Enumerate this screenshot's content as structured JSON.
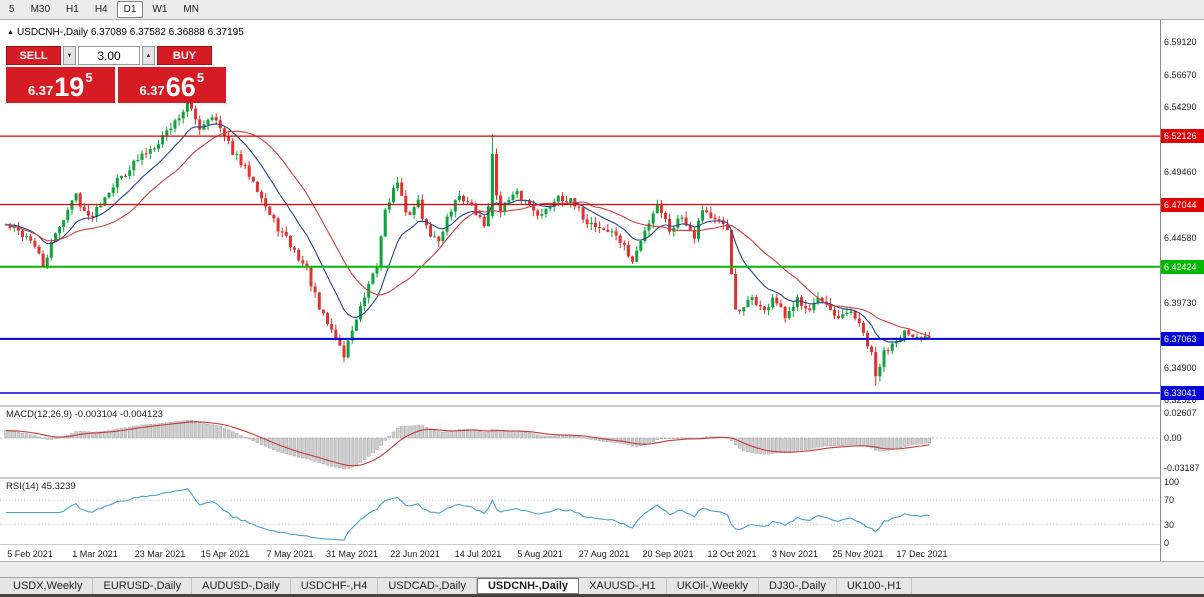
{
  "toolbar": {
    "timeframes": [
      {
        "label": "5",
        "active": false
      },
      {
        "label": "M30",
        "active": false
      },
      {
        "label": "H1",
        "active": false
      },
      {
        "label": "H4",
        "active": false
      },
      {
        "label": "D1",
        "active": true
      },
      {
        "label": "W1",
        "active": false
      },
      {
        "label": "MN",
        "active": false
      }
    ]
  },
  "chart": {
    "title": "USDCNH-,Daily 6.37089 6.37582 6.36888 6.37195",
    "symbol": "USDCNH-,Daily",
    "ohlc": {
      "open": "6.37089",
      "high": "6.37582",
      "low": "6.36888",
      "close": "6.37195"
    }
  },
  "trade_panel": {
    "sell_label": "SELL",
    "buy_label": "BUY",
    "volume": "3.00",
    "bid": {
      "prefix": "6.37",
      "big": "19",
      "sup": "5"
    },
    "ask": {
      "prefix": "6.37",
      "big": "66",
      "sup": "5"
    }
  },
  "icons": {
    "volume_up": "▲",
    "volume_down": "▼",
    "collapse_marker": "▲"
  },
  "price_axis": {
    "ticks": [
      {
        "label": "6.59120",
        "price": 6.5912
      },
      {
        "label": "6.56670",
        "price": 6.5667
      },
      {
        "label": "6.54290",
        "price": 6.5429
      },
      {
        "label": "6.49460",
        "price": 6.4946
      },
      {
        "label": "6.44580",
        "price": 6.4458
      },
      {
        "label": "6.39730",
        "price": 6.3973
      },
      {
        "label": "6.37310",
        "price": 6.3731
      },
      {
        "label": "6.34900",
        "price": 6.349
      },
      {
        "label": "6.32520",
        "price": 6.3252
      }
    ],
    "level_tags": [
      {
        "label": "6.52126",
        "price": 6.52126,
        "color": "#e00000"
      },
      {
        "label": "6.47044",
        "price": 6.47044,
        "color": "#e00000"
      },
      {
        "label": "6.42424",
        "price": 6.42424,
        "color": "#00b800"
      },
      {
        "label": "6.37063",
        "price": 6.37063,
        "color": "#0000d8"
      },
      {
        "label": "6.33041",
        "price": 6.33041,
        "color": "#0000d8"
      }
    ]
  },
  "macd_panel": {
    "label": "MACD(12,26,9) -0.003104 -0.004123",
    "axis": [
      {
        "label": "0.02607",
        "value": 0.02607
      },
      {
        "label": "0.00",
        "value": 0
      },
      {
        "label": "-0.03187",
        "value": -0.03187
      }
    ]
  },
  "rsi_panel": {
    "label": "RSI(14) 45.3239",
    "axis": [
      {
        "label": "100",
        "value": 100
      },
      {
        "label": "70",
        "value": 70
      },
      {
        "label": "30",
        "value": 30
      },
      {
        "label": "0",
        "value": 0
      }
    ],
    "levels": [
      70,
      30
    ]
  },
  "date_axis": {
    "labels": [
      "5 Feb 2021",
      "1 Mar 2021",
      "23 Mar 2021",
      "15 Apr 2021",
      "7 May 2021",
      "31 May 2021",
      "22 Jun 2021",
      "14 Jul 2021",
      "5 Aug 2021",
      "27 Aug 2021",
      "20 Sep 2021",
      "12 Oct 2021",
      "3 Nov 2021",
      "25 Nov 2021",
      "17 Dec 2021"
    ]
  },
  "tabs": [
    {
      "label": "USDX,Weekly",
      "active": false
    },
    {
      "label": "EURUSD-,Daily",
      "active": false
    },
    {
      "label": "AUDUSD-,Daily",
      "active": false
    },
    {
      "label": "USDCHF-,H4",
      "active": false
    },
    {
      "label": "USDCAD-,Daily",
      "active": false
    },
    {
      "label": "USDCNH-,Daily",
      "active": true
    },
    {
      "label": "XAUUSD-,H1",
      "active": false
    },
    {
      "label": "UKOil-,Weekly",
      "active": false
    },
    {
      "label": "DJ30-,Daily",
      "active": false
    },
    {
      "label": "UK100-,H1",
      "active": false
    }
  ],
  "colors": {
    "candle_up": "#0fa13c",
    "candle_down": "#e23030",
    "ma_fast": "#23458f",
    "ma_slow": "#cf4040",
    "macd_hist_fill": "#cecece",
    "macd_hist_stroke": "#9a9a9a",
    "macd_signal": "#c43a3a",
    "rsi_line": "#4aa0d8",
    "sell_buy_red": "#d51c24"
  },
  "chart_data": {
    "type": "candlestick",
    "symbol": "USDCNH",
    "timeframe": "D1",
    "visible_range": {
      "start": "5 Feb 2021",
      "end": "17 Dec 2021"
    },
    "candle_count": 225,
    "price_anchors": [
      [
        0,
        6.455
      ],
      [
        6,
        6.445
      ],
      [
        9,
        6.425
      ],
      [
        13,
        6.455
      ],
      [
        17,
        6.478
      ],
      [
        20,
        6.46
      ],
      [
        22,
        6.468
      ],
      [
        25,
        6.482
      ],
      [
        30,
        6.498
      ],
      [
        35,
        6.512
      ],
      [
        37,
        6.518
      ],
      [
        41,
        6.532
      ],
      [
        44,
        6.545
      ],
      [
        47,
        6.528
      ],
      [
        50,
        6.538
      ],
      [
        53,
        6.52
      ],
      [
        57,
        6.5
      ],
      [
        60,
        6.49
      ],
      [
        64,
        6.462
      ],
      [
        69,
        6.44
      ],
      [
        73,
        6.422
      ],
      [
        76,
        6.392
      ],
      [
        80,
        6.372
      ],
      [
        82,
        6.358
      ],
      [
        84,
        6.378
      ],
      [
        87,
        6.4
      ],
      [
        90,
        6.425
      ],
      [
        92,
        6.468
      ],
      [
        95,
        6.488
      ],
      [
        97,
        6.462
      ],
      [
        100,
        6.472
      ],
      [
        102,
        6.452
      ],
      [
        105,
        6.442
      ],
      [
        107,
        6.462
      ],
      [
        110,
        6.478
      ],
      [
        113,
        6.468
      ],
      [
        116,
        6.455
      ],
      [
        118,
        6.488
      ],
      [
        120,
        6.468
      ],
      [
        124,
        6.478
      ],
      [
        128,
        6.468
      ],
      [
        130,
        6.462
      ],
      [
        134,
        6.478
      ],
      [
        137,
        6.472
      ],
      [
        141,
        6.458
      ],
      [
        145,
        6.452
      ],
      [
        148,
        6.448
      ],
      [
        150,
        6.438
      ],
      [
        152,
        6.428
      ],
      [
        156,
        6.458
      ],
      [
        158,
        6.472
      ],
      [
        161,
        6.452
      ],
      [
        164,
        6.462
      ],
      [
        167,
        6.448
      ],
      [
        169,
        6.468
      ],
      [
        172,
        6.458
      ],
      [
        175,
        6.452
      ],
      [
        177,
        6.39
      ],
      [
        179,
        6.392
      ],
      [
        181,
        6.402
      ],
      [
        184,
        6.39
      ],
      [
        186,
        6.402
      ],
      [
        189,
        6.386
      ],
      [
        191,
        6.392
      ],
      [
        192,
        6.4
      ],
      [
        195,
        6.394
      ],
      [
        197,
        6.4
      ],
      [
        200,
        6.39
      ],
      [
        202,
        6.384
      ],
      [
        205,
        6.392
      ],
      [
        207,
        6.38
      ],
      [
        208,
        6.374
      ],
      [
        210,
        6.358
      ],
      [
        211,
        6.342
      ],
      [
        213,
        6.36
      ],
      [
        216,
        6.372
      ],
      [
        218,
        6.376
      ],
      [
        220,
        6.369
      ],
      [
        224,
        6.372
      ]
    ],
    "spike_high": {
      "index": 118,
      "open": 6.462,
      "close": 6.508,
      "high": 6.523
    },
    "late_low": {
      "index": 211,
      "low": 6.336
    },
    "last_close": 6.37195,
    "levels": [
      6.52126,
      6.47044,
      6.42424,
      6.37063,
      6.33041
    ],
    "indicators": {
      "macd": {
        "fast": 12,
        "slow": 26,
        "signal": 9,
        "current_main": -0.003104,
        "current_signal": -0.004123,
        "axis_max": 0.02607,
        "axis_min": -0.03187
      },
      "rsi": {
        "period": 14,
        "current": 45.3239,
        "levels": [
          70,
          30
        ]
      },
      "moving_averages": [
        {
          "type": "ema",
          "period": 12
        },
        {
          "type": "sma",
          "period": 24
        }
      ]
    }
  }
}
